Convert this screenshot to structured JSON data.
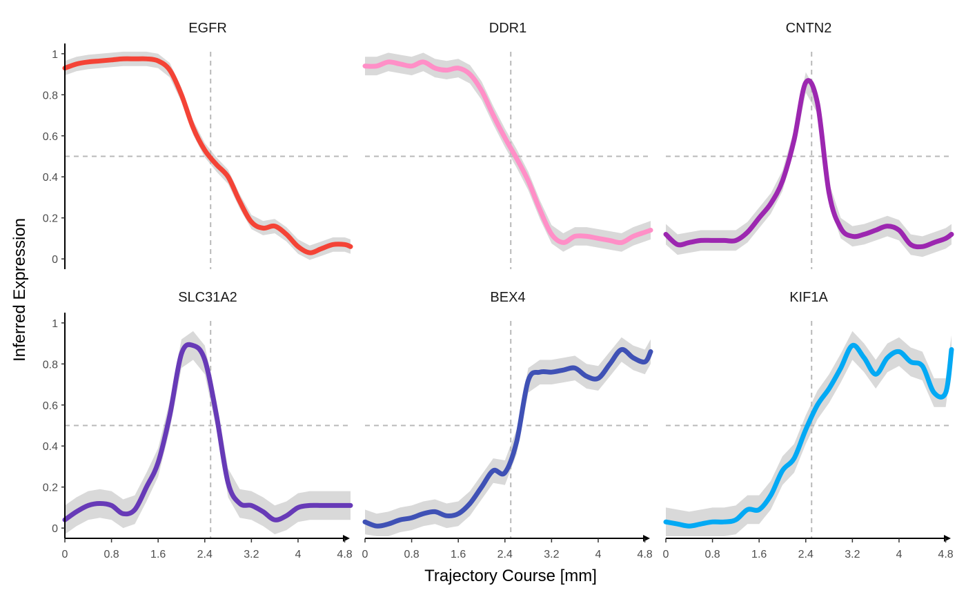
{
  "chart_data": {
    "type": "line",
    "xlabel": "Trajectory Course [mm]",
    "ylabel": "Inferred Expression",
    "xlim": [
      0,
      4.9
    ],
    "ylim": [
      -0.05,
      1.05
    ],
    "x_ticks": [
      0,
      0.8,
      1.6,
      2.4,
      3.2,
      4,
      4.8
    ],
    "x_tick_labels": [
      "0",
      "0.8",
      "1.6",
      "2.4",
      "3.2",
      "4",
      "4.8"
    ],
    "y_ticks": [
      0,
      0.2,
      0.4,
      0.6,
      0.8,
      1
    ],
    "y_tick_labels": [
      "0",
      "0.2",
      "0.4",
      "0.6",
      "0.8",
      "1"
    ],
    "reference_lines": {
      "vertical_x": 2.5,
      "horizontal_y": 0.5
    },
    "ribbon_color": "#d9d9d9",
    "x": [
      0,
      0.2,
      0.4,
      0.6,
      0.8,
      1.0,
      1.2,
      1.4,
      1.6,
      1.8,
      2.0,
      2.2,
      2.4,
      2.6,
      2.8,
      3.0,
      3.2,
      3.4,
      3.6,
      3.8,
      4.0,
      4.2,
      4.4,
      4.6,
      4.8,
      4.9
    ],
    "series": [
      {
        "name": "EGFR",
        "color": "#f44336",
        "values": [
          0.93,
          0.95,
          0.96,
          0.965,
          0.97,
          0.975,
          0.975,
          0.975,
          0.965,
          0.92,
          0.8,
          0.64,
          0.53,
          0.46,
          0.4,
          0.28,
          0.18,
          0.15,
          0.16,
          0.12,
          0.06,
          0.03,
          0.05,
          0.07,
          0.07,
          0.06
        ],
        "band": 0.035
      },
      {
        "name": "DDR1",
        "color": "#ff8fc7",
        "values": [
          0.94,
          0.94,
          0.96,
          0.95,
          0.94,
          0.96,
          0.93,
          0.92,
          0.93,
          0.9,
          0.82,
          0.7,
          0.59,
          0.49,
          0.38,
          0.24,
          0.12,
          0.08,
          0.11,
          0.11,
          0.1,
          0.09,
          0.08,
          0.11,
          0.13,
          0.14
        ],
        "band": 0.045
      },
      {
        "name": "CNTN2",
        "color": "#9c27b0",
        "values": [
          0.12,
          0.07,
          0.08,
          0.09,
          0.09,
          0.09,
          0.09,
          0.13,
          0.2,
          0.27,
          0.38,
          0.58,
          0.86,
          0.76,
          0.32,
          0.15,
          0.11,
          0.12,
          0.14,
          0.16,
          0.14,
          0.07,
          0.06,
          0.08,
          0.1,
          0.12
        ],
        "band": 0.05
      },
      {
        "name": "SLC31A2",
        "color": "#673ab7",
        "values": [
          0.04,
          0.08,
          0.11,
          0.12,
          0.11,
          0.07,
          0.09,
          0.2,
          0.32,
          0.55,
          0.85,
          0.89,
          0.82,
          0.55,
          0.22,
          0.12,
          0.11,
          0.08,
          0.04,
          0.06,
          0.1,
          0.11,
          0.11,
          0.11,
          0.11,
          0.11
        ],
        "band": 0.07
      },
      {
        "name": "BEX4",
        "color": "#3f51b5",
        "values": [
          0.03,
          0.01,
          0.02,
          0.04,
          0.05,
          0.07,
          0.08,
          0.06,
          0.07,
          0.12,
          0.2,
          0.28,
          0.27,
          0.42,
          0.72,
          0.76,
          0.76,
          0.77,
          0.78,
          0.74,
          0.73,
          0.8,
          0.87,
          0.83,
          0.81,
          0.86
        ],
        "band": 0.06
      },
      {
        "name": "KIF1A",
        "color": "#03a9f4",
        "values": [
          0.03,
          0.02,
          0.01,
          0.02,
          0.03,
          0.03,
          0.04,
          0.09,
          0.09,
          0.16,
          0.28,
          0.34,
          0.48,
          0.6,
          0.68,
          0.78,
          0.89,
          0.83,
          0.75,
          0.83,
          0.86,
          0.81,
          0.79,
          0.66,
          0.66,
          0.87
        ],
        "band": 0.07
      }
    ]
  }
}
